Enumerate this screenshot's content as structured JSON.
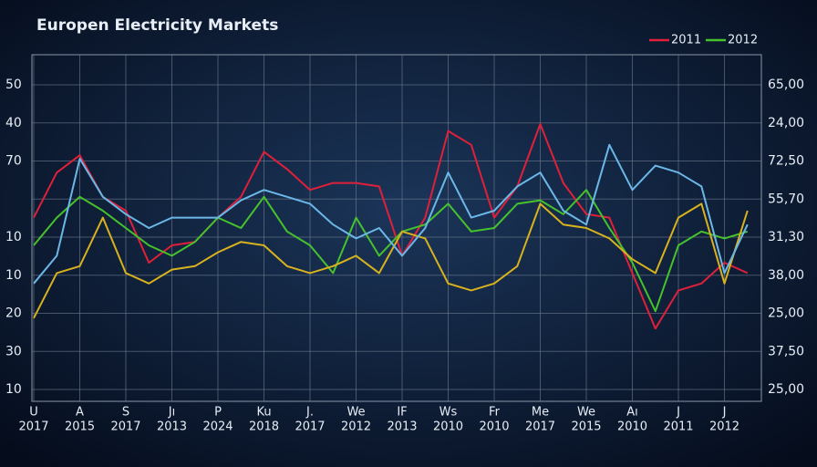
{
  "chart_data": {
    "type": "line",
    "title": "Europen Electricity Markets",
    "ylim": [
      0,
      100
    ],
    "left_axis_labels": [
      "50",
      "40",
      "70",
      null,
      "10",
      "10",
      "20",
      "30",
      "10"
    ],
    "right_axis_labels": [
      "65,00",
      "24,00",
      "72,50",
      "55,70",
      "31,30",
      "38,00",
      "25,00",
      "37,50",
      "25,00"
    ],
    "x_labels": [
      {
        "month": "U",
        "year": "2017"
      },
      {
        "month": "A",
        "year": "2015"
      },
      {
        "month": "S",
        "year": "2017"
      },
      {
        "month": "Jı",
        "year": "2013"
      },
      {
        "month": "P",
        "year": "2024"
      },
      {
        "month": "Ku",
        "year": "2018"
      },
      {
        "month": "J.",
        "year": "2017"
      },
      {
        "month": "We",
        "year": "2012"
      },
      {
        "month": "IF",
        "year": "2013"
      },
      {
        "month": "Ws",
        "year": "2010"
      },
      {
        "month": "Fr",
        "year": "2010"
      },
      {
        "month": "Me",
        "year": "2017"
      },
      {
        "month": "We",
        "year": "2015"
      },
      {
        "month": "Aı",
        "year": "2010"
      },
      {
        "month": "J",
        "year": "2011"
      },
      {
        "month": "J",
        "year": "2012"
      }
    ],
    "grid": true,
    "legend": "top-right",
    "series": [
      {
        "name": "2011",
        "color": "#e0203a",
        "values": [
          53,
          66,
          71,
          59,
          55,
          40,
          45,
          46,
          53,
          59,
          72,
          67,
          61,
          63,
          63,
          62,
          42,
          53,
          78,
          74,
          53,
          62,
          80,
          63,
          54,
          53,
          37,
          21,
          32,
          34,
          40,
          37
        ]
      },
      {
        "name": "2012",
        "color": "#46c22c",
        "values": [
          45,
          53,
          59,
          55,
          50,
          45,
          42,
          46,
          53,
          50,
          59,
          49,
          45,
          37,
          53,
          42,
          49,
          51,
          57,
          49,
          50,
          57,
          58,
          54,
          61,
          50,
          40,
          26,
          45,
          49,
          47,
          49
        ]
      },
      {
        "color": "#d8b21e",
        "values": [
          24,
          37,
          39,
          53,
          37,
          34,
          38,
          39,
          43,
          46,
          45,
          39,
          37,
          39,
          42,
          37,
          49,
          47,
          34,
          32,
          34,
          39,
          57,
          51,
          50,
          47,
          41,
          37,
          53,
          57,
          34,
          55
        ]
      },
      {
        "color": "#6bb8e8",
        "values": [
          34,
          42,
          70,
          59,
          54,
          50,
          53,
          53,
          53,
          58,
          61,
          59,
          57,
          51,
          47,
          50,
          42,
          50,
          66,
          53,
          55,
          62,
          66,
          55,
          51,
          74,
          61,
          68,
          66,
          62,
          37,
          51
        ]
      }
    ]
  }
}
